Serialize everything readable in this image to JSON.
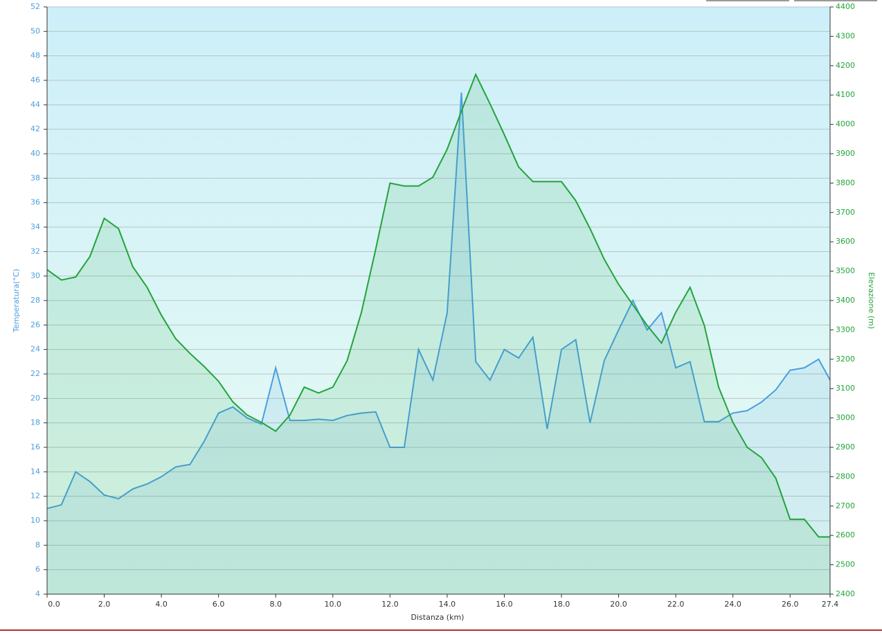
{
  "chart_data": {
    "type": "line",
    "xlabel": "Distanza  (km)",
    "ylabel": "Temperatura(°C)",
    "y2label": "Elevazione (m)",
    "x": [
      0,
      0.5,
      1,
      1.5,
      2,
      2.5,
      3,
      3.5,
      4,
      4.5,
      5,
      5.5,
      6,
      6.5,
      7,
      7.5,
      8,
      8.5,
      9,
      9.5,
      10,
      10.5,
      11,
      11.5,
      12,
      12.5,
      13,
      13.5,
      14,
      14.5,
      15,
      15.5,
      16,
      16.5,
      17,
      17.5,
      18,
      18.5,
      19,
      19.5,
      20,
      20.5,
      21,
      21.5,
      22,
      22.5,
      23,
      23.5,
      24,
      24.5,
      25,
      25.5,
      26,
      26.5,
      27,
      27.4
    ],
    "series": [
      {
        "name": "Temperatura",
        "color": "#4a9ee0",
        "axis": "y",
        "values": [
          11,
          11.3,
          14,
          13.2,
          12.1,
          11.8,
          12.6,
          13,
          13.6,
          14.4,
          14.6,
          16.5,
          18.8,
          19.3,
          18.4,
          17.9,
          22.5,
          18.2,
          18.2,
          18.3,
          18.2,
          18.6,
          18.8,
          18.9,
          16,
          16,
          24,
          21.5,
          27,
          45,
          23,
          21.5,
          24,
          23.3,
          25,
          17.5,
          24,
          24.8,
          18,
          23.1,
          25.6,
          28,
          25.6,
          27,
          22.5,
          23,
          18.1,
          18.1,
          18.8,
          19,
          19.7,
          20.7,
          22.3,
          22.5,
          23.2,
          21.5
        ]
      },
      {
        "name": "Elevazione",
        "color": "#22a33a",
        "axis": "y2",
        "values": [
          3505,
          3470,
          3480,
          3550,
          3680,
          3645,
          3515,
          3445,
          3350,
          3270,
          3220,
          3175,
          3125,
          3055,
          3010,
          2985,
          2955,
          3010,
          3105,
          3085,
          3105,
          3195,
          3360,
          3575,
          3800,
          3790,
          3790,
          3820,
          3915,
          4045,
          4170,
          4070,
          3965,
          3855,
          3805,
          3805,
          3805,
          3740,
          3645,
          3540,
          3455,
          3385,
          3315,
          3255,
          3360,
          3445,
          3315,
          3105,
          2985,
          2900,
          2865,
          2795,
          2655,
          2655,
          2595,
          2595
        ]
      }
    ],
    "xlim": [
      0,
      27.4
    ],
    "xticks": [
      {
        "value": 0,
        "label": "0.0"
      },
      {
        "value": 2,
        "label": "2.0"
      },
      {
        "value": 4,
        "label": "4.0"
      },
      {
        "value": 6,
        "label": "6.0"
      },
      {
        "value": 8,
        "label": "8.0"
      },
      {
        "value": 10,
        "label": "10.0"
      },
      {
        "value": 12,
        "label": "12.0"
      },
      {
        "value": 14,
        "label": "14.0"
      },
      {
        "value": 16,
        "label": "16.0"
      },
      {
        "value": 18,
        "label": "18.0"
      },
      {
        "value": 20,
        "label": "20.0"
      },
      {
        "value": 22,
        "label": "22.0"
      },
      {
        "value": 24,
        "label": "24.0"
      },
      {
        "value": 26,
        "label": "26.0"
      },
      27.4
    ],
    "ylim": [
      4,
      52
    ],
    "yticks": [
      4,
      6,
      8,
      10,
      12,
      14,
      16,
      18,
      20,
      22,
      24,
      26,
      28,
      30,
      32,
      34,
      36,
      38,
      40,
      42,
      44,
      46,
      48,
      50,
      52
    ],
    "y2lim": [
      2400,
      4400
    ],
    "y2ticks": [
      2400,
      2500,
      2600,
      2700,
      2800,
      2900,
      3000,
      3100,
      3200,
      3300,
      3400,
      3500,
      3600,
      3700,
      3800,
      3900,
      4000,
      4100,
      4200,
      4300,
      4400
    ],
    "grid": true
  }
}
